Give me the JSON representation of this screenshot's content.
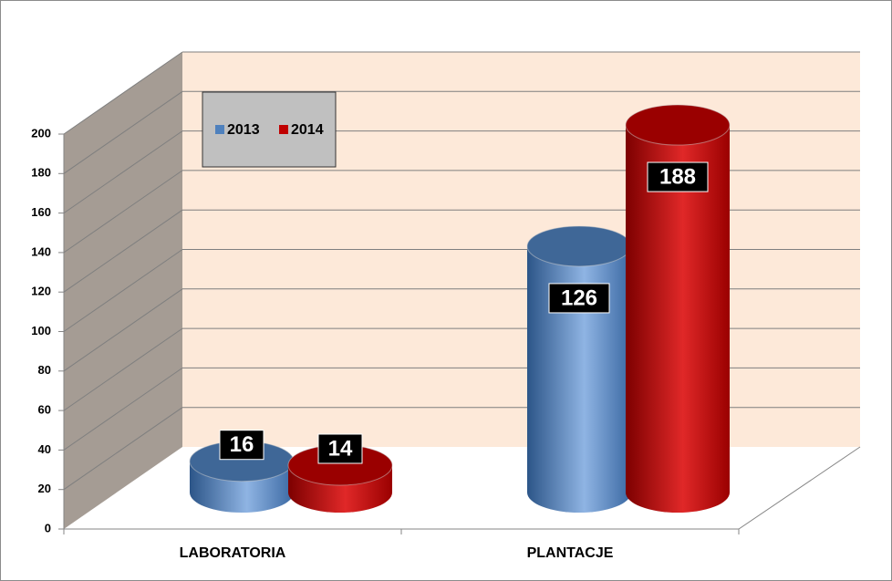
{
  "chart_data": {
    "type": "cylinder-bar",
    "categories": [
      "LABORATORIA",
      "PLANTACJE"
    ],
    "series": [
      {
        "name": "2013",
        "color": "#4f81bd",
        "values": [
          16,
          126
        ]
      },
      {
        "name": "2014",
        "color": "#c00000",
        "values": [
          14,
          188
        ]
      }
    ],
    "ylim": [
      0,
      200
    ],
    "yticks": [
      0,
      20,
      40,
      60,
      80,
      100,
      120,
      140,
      160,
      180,
      200
    ],
    "grid": true,
    "legend": "top-left"
  }
}
